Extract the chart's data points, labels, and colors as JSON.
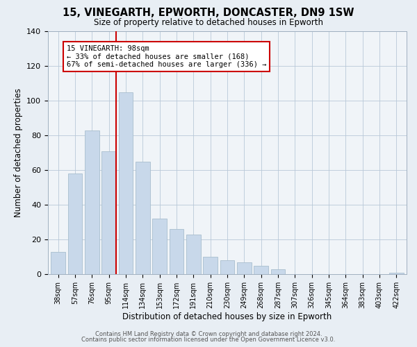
{
  "title": "15, VINEGARTH, EPWORTH, DONCASTER, DN9 1SW",
  "subtitle": "Size of property relative to detached houses in Epworth",
  "xlabel": "Distribution of detached houses by size in Epworth",
  "ylabel": "Number of detached properties",
  "bar_labels": [
    "38sqm",
    "57sqm",
    "76sqm",
    "95sqm",
    "114sqm",
    "134sqm",
    "153sqm",
    "172sqm",
    "191sqm",
    "210sqm",
    "230sqm",
    "249sqm",
    "268sqm",
    "287sqm",
    "307sqm",
    "326sqm",
    "345sqm",
    "364sqm",
    "383sqm",
    "403sqm",
    "422sqm"
  ],
  "bar_values": [
    13,
    58,
    83,
    71,
    105,
    65,
    32,
    26,
    23,
    10,
    8,
    7,
    5,
    3,
    0,
    0,
    0,
    0,
    0,
    0,
    1
  ],
  "bar_color": "#c8d8ea",
  "bar_edge_color": "#a8bece",
  "vline_color": "#cc0000",
  "annotation_text": "15 VINEGARTH: 98sqm\n← 33% of detached houses are smaller (168)\n67% of semi-detached houses are larger (336) →",
  "annotation_box_color": "#ffffff",
  "annotation_box_edge": "#cc0000",
  "ylim": [
    0,
    140
  ],
  "yticks": [
    0,
    20,
    40,
    60,
    80,
    100,
    120,
    140
  ],
  "footer_line1": "Contains HM Land Registry data © Crown copyright and database right 2024.",
  "footer_line2": "Contains public sector information licensed under the Open Government Licence v3.0.",
  "background_color": "#e8eef4",
  "plot_background_color": "#f0f4f8"
}
